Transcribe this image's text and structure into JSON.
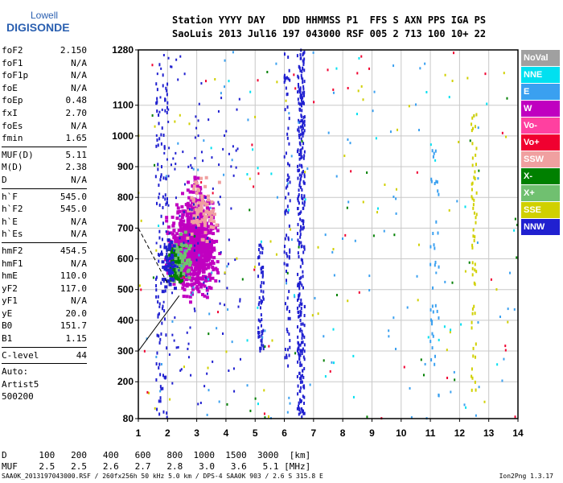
{
  "logo": {
    "line1": "Lowell",
    "line2": "DIGISONDE"
  },
  "header": {
    "line1": "Station YYYY DAY   DDD HHMMSS P1  FFS S AXN PPS IGA PS",
    "line2": "SaoLuis 2013 Jul16 197 043000 RSF 005 2 713 100 10+ 22"
  },
  "params": {
    "group1": [
      {
        "name": "foF2",
        "value": "2.150"
      },
      {
        "name": "foF1",
        "value": "N/A"
      },
      {
        "name": "foF1p",
        "value": "N/A"
      },
      {
        "name": "foE",
        "value": "N/A"
      },
      {
        "name": "foEp",
        "value": "0.48"
      },
      {
        "name": "fxI",
        "value": "2.70"
      },
      {
        "name": "foEs",
        "value": "N/A"
      },
      {
        "name": "fmin",
        "value": "1.65"
      }
    ],
    "group2": [
      {
        "name": "MUF(D)",
        "value": "5.11"
      },
      {
        "name": "M(D)",
        "value": "2.38"
      },
      {
        "name": "D",
        "value": "N/A"
      }
    ],
    "group3": [
      {
        "name": "h`F",
        "value": "545.0"
      },
      {
        "name": "h`F2",
        "value": "545.0"
      },
      {
        "name": "h`E",
        "value": "N/A"
      },
      {
        "name": "h`Es",
        "value": "N/A"
      }
    ],
    "group4": [
      {
        "name": "hmF2",
        "value": "454.5"
      },
      {
        "name": "hmF1",
        "value": "N/A"
      },
      {
        "name": "hmE",
        "value": "110.0"
      },
      {
        "name": "yF2",
        "value": "117.0"
      },
      {
        "name": "yF1",
        "value": "N/A"
      },
      {
        "name": "yE",
        "value": "20.0"
      },
      {
        "name": "B0",
        "value": "151.7"
      },
      {
        "name": "B1",
        "value": "1.15"
      }
    ],
    "group5": [
      {
        "name": "C-level",
        "value": "44"
      }
    ],
    "auto": [
      "Auto:",
      "Artist5",
      "500200"
    ]
  },
  "legend": [
    {
      "label": "NoVal",
      "color": "#a0a0a0"
    },
    {
      "label": "NNE",
      "color": "#00e0f0"
    },
    {
      "label": "E",
      "color": "#3aa0f0"
    },
    {
      "label": "W",
      "color": "#c000c0"
    },
    {
      "label": "Vo-",
      "color": "#ff40a0"
    },
    {
      "label": "Vo+",
      "color": "#f00030"
    },
    {
      "label": "SSW",
      "color": "#f0a0a0"
    },
    {
      "label": "X-",
      "color": "#008000"
    },
    {
      "label": "X+",
      "color": "#70c070"
    },
    {
      "label": "SSE",
      "color": "#d0d000"
    },
    {
      "label": "NNW",
      "color": "#2020d0"
    }
  ],
  "chart_data": {
    "type": "scatter",
    "xlim": [
      1,
      14
    ],
    "ylim": [
      80,
      1280
    ],
    "x_ticks": [
      1,
      2,
      3,
      4,
      5,
      6,
      7,
      8,
      9,
      10,
      11,
      12,
      13,
      14
    ],
    "y_ticks": [
      80,
      200,
      300,
      400,
      500,
      600,
      700,
      800,
      900,
      1000,
      1100,
      1280
    ],
    "grid": true,
    "clusters": [
      {
        "type": "blob",
        "color": "#c000c0",
        "x": [
          1.8,
          3.9
        ],
        "y": [
          450,
          800
        ],
        "count": 900
      },
      {
        "type": "blob",
        "color": "#c000c0",
        "x": [
          2.3,
          3.7
        ],
        "y": [
          550,
          900
        ],
        "count": 250
      },
      {
        "type": "blob",
        "color": "#008000",
        "x": [
          1.9,
          2.7
        ],
        "y": [
          480,
          680
        ],
        "count": 90
      },
      {
        "type": "blob",
        "color": "#70c070",
        "x": [
          2.0,
          2.9
        ],
        "y": [
          500,
          700
        ],
        "count": 60
      },
      {
        "type": "blob",
        "color": "#f0a0a0",
        "x": [
          2.5,
          3.9
        ],
        "y": [
          600,
          900
        ],
        "count": 80
      },
      {
        "type": "blob",
        "color": "#2020d0",
        "x": [
          1.7,
          2.5
        ],
        "y": [
          470,
          700
        ],
        "count": 40
      },
      {
        "type": "trace",
        "color": "#2020d0",
        "x": [
          6.45,
          6.7
        ],
        "y": [
          80,
          1280
        ],
        "count": 320
      },
      {
        "type": "trace",
        "color": "#2020d0",
        "x": [
          5.1,
          5.3
        ],
        "y": [
          300,
          650
        ],
        "count": 60
      },
      {
        "type": "trace",
        "color": "#2020d0",
        "x": [
          6.0,
          6.2
        ],
        "y": [
          200,
          1280
        ],
        "count": 80
      },
      {
        "type": "trace",
        "color": "#2020d0",
        "x": [
          1.6,
          2.0
        ],
        "y": [
          80,
          1280
        ],
        "count": 120
      },
      {
        "type": "scatter",
        "color": "#2020d0",
        "x": [
          1.6,
          4.5
        ],
        "y": [
          80,
          1280
        ],
        "count": 140
      },
      {
        "type": "scatter",
        "color": "#3aa0f0",
        "x": [
          1,
          14
        ],
        "y": [
          80,
          1280
        ],
        "count": 110
      },
      {
        "type": "scatter",
        "color": "#d0d000",
        "x": [
          1,
          14
        ],
        "y": [
          80,
          1280
        ],
        "count": 60
      },
      {
        "type": "scatter",
        "color": "#f00030",
        "x": [
          1,
          14
        ],
        "y": [
          80,
          1280
        ],
        "count": 40
      },
      {
        "type": "scatter",
        "color": "#008000",
        "x": [
          1,
          14
        ],
        "y": [
          80,
          1280
        ],
        "count": 35
      },
      {
        "type": "scatter",
        "color": "#00e0f0",
        "x": [
          1,
          14
        ],
        "y": [
          80,
          1280
        ],
        "count": 40
      },
      {
        "type": "trace",
        "color": "#d0d000",
        "x": [
          12.4,
          12.6
        ],
        "y": [
          150,
          1100
        ],
        "count": 60
      },
      {
        "type": "trace",
        "color": "#3aa0f0",
        "x": [
          11.0,
          11.3
        ],
        "y": [
          150,
          1000
        ],
        "count": 40
      }
    ],
    "trace_lines": [
      {
        "name": "profile",
        "style": "solid",
        "points": [
          [
            1,
            300
          ],
          [
            2.4,
            480
          ]
        ]
      },
      {
        "name": "profile-dashed",
        "style": "dashed",
        "points": [
          [
            1,
            700
          ],
          [
            2.0,
            520
          ]
        ]
      }
    ]
  },
  "footer": {
    "d_label": "D",
    "d_values": [
      "100",
      "200",
      "400",
      "600",
      "800",
      "1000",
      "1500",
      "3000",
      "[km]"
    ],
    "muf_label": "MUF",
    "muf_values": [
      "2.5",
      "2.5",
      "2.6",
      "2.7",
      "2.8",
      "3.0",
      "3.6",
      "5.1",
      "[MHz]"
    ],
    "file_info": "SAA0K_2013197043000.RSF / 260fx256h 50 kHz 5.0 km / DPS-4 SAA0K 903 / 2.6 S 315.8 E",
    "version": "Ion2Png 1.3.17"
  }
}
